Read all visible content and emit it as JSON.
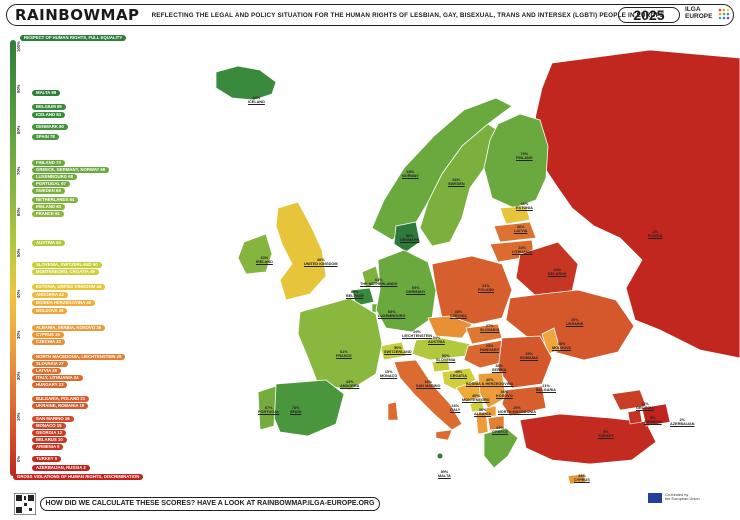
{
  "header": {
    "logo": "RAINBOWMAP",
    "subtitle": "REFLECTING THE LEGAL AND POLICY SITUATION FOR THE HUMAN RIGHTS OF LESBIAN, GAY, BISEXUAL, TRANS AND INTERSEX (LGBTI) PEOPLE IN EUROPE",
    "year": "2025",
    "org_line1": "ILGA",
    "org_line2": "EUROPE"
  },
  "legend": {
    "top_label": "RESPECT OF HUMAN RIGHTS, FULL EQUALITY",
    "bottom_label": "GROSS VIOLATIONS OF HUMAN RIGHTS, DISCRIMINATION",
    "ticks": [
      "100%",
      "90%",
      "80%",
      "70%",
      "60%",
      "50%",
      "40%",
      "30%",
      "20%",
      "10%",
      "0%"
    ],
    "entries": [
      {
        "text": "MALTA 89",
        "color": "#2f7d3c"
      },
      {
        "text": "BELGIUM 85",
        "color": "#3a8a3e"
      },
      {
        "text": "ICELAND 84",
        "color": "#3a8a3e"
      },
      {
        "text": "DENMARK 80",
        "color": "#43913e"
      },
      {
        "text": "SPAIN 78",
        "color": "#4a963d"
      },
      {
        "text": "FINLAND 70",
        "color": "#6aa93e"
      },
      {
        "text": "GREECE, GERMANY, NORWAY 69",
        "color": "#6aa93e"
      },
      {
        "text": "LUXEMBOURG 68",
        "color": "#6fab3e"
      },
      {
        "text": "PORTUGAL 67",
        "color": "#74ad3e"
      },
      {
        "text": "SWEDEN 66",
        "color": "#78af3e"
      },
      {
        "text": "NETHERLANDS 64",
        "color": "#80b33e"
      },
      {
        "text": "IRELAND 63",
        "color": "#85b53e"
      },
      {
        "text": "FRANCE 61",
        "color": "#8ab83e"
      },
      {
        "text": "AUSTRIA 54",
        "color": "#b2c83d"
      },
      {
        "text": "SLOVENIA, SWITZERLAND 50",
        "color": "#c5cd3b"
      },
      {
        "text": "MONTENEGRO, CROATIA 49",
        "color": "#cfd03b"
      },
      {
        "text": "ESTONIA, UNITED KINGDOM 46",
        "color": "#e7c53a"
      },
      {
        "text": "ANDORRA 43",
        "color": "#eeb83a"
      },
      {
        "text": "BOSNIA HERZEGOVINA 40",
        "color": "#eeac3a"
      },
      {
        "text": "MOLDOVA 38",
        "color": "#eea53a"
      },
      {
        "text": "ALBANIA, SERBIA, KOSOVO 36",
        "color": "#ec9d39"
      },
      {
        "text": "CYPRUS 34",
        "color": "#ea9637"
      },
      {
        "text": "CZECHIA 33",
        "color": "#e88f36"
      },
      {
        "text": "NORTH MACEDONIA, LIECHTENSTEIN 29",
        "color": "#e27f33"
      },
      {
        "text": "SLOVAKIA 27",
        "color": "#df7731"
      },
      {
        "text": "LATVIA 26",
        "color": "#dd7331"
      },
      {
        "text": "ITALY, LITHUANIA 24",
        "color": "#db6b2f"
      },
      {
        "text": "HUNGARY 23",
        "color": "#d9672f"
      },
      {
        "text": "BULGARIA, POLAND 21",
        "color": "#d65f2d"
      },
      {
        "text": "UKRAINE, ROMANIA 19",
        "color": "#d4582c"
      },
      {
        "text": "SAN MARINO 16",
        "color": "#cf4b29"
      },
      {
        "text": "MONACO 15",
        "color": "#cd4728"
      },
      {
        "text": "GEORGIA 12",
        "color": "#c93c25"
      },
      {
        "text": "BELARUS 10",
        "color": "#c73623"
      },
      {
        "text": "ARMENIA 9",
        "color": "#c63322"
      },
      {
        "text": "TURKEY 5",
        "color": "#c32a20"
      },
      {
        "text": "AZERBAIJAN, RUSSIA 2",
        "color": "#c1241e"
      }
    ]
  },
  "map_labels": [
    {
      "pct": "84%",
      "name": "ICELAND"
    },
    {
      "pct": "69%",
      "name": "NORWAY"
    },
    {
      "pct": "66%",
      "name": "SWEDEN"
    },
    {
      "pct": "70%",
      "name": "FINLAND"
    },
    {
      "pct": "46%",
      "name": "ESTONIA"
    },
    {
      "pct": "26%",
      "name": "LATVIA"
    },
    {
      "pct": "24%",
      "name": "LITHUANIA"
    },
    {
      "pct": "2%",
      "name": "RUSSIA"
    },
    {
      "pct": "10%",
      "name": "BELARUS"
    },
    {
      "pct": "80%",
      "name": "DENMARK"
    },
    {
      "pct": "63%",
      "name": "IRELAND"
    },
    {
      "pct": "46%",
      "name": "UNITED KINGDOM"
    },
    {
      "pct": "64%",
      "name": "THE NETHERLANDS"
    },
    {
      "pct": "85%",
      "name": "BELGIUM"
    },
    {
      "pct": "68%",
      "name": "LUXEMBOURG"
    },
    {
      "pct": "69%",
      "name": "GERMANY"
    },
    {
      "pct": "21%",
      "name": "POLAND"
    },
    {
      "pct": "33%",
      "name": "CZECHIA"
    },
    {
      "pct": "27%",
      "name": "SLOVAKIA"
    },
    {
      "pct": "19%",
      "name": "UKRAINE"
    },
    {
      "pct": "38%",
      "name": "MOLDOVA"
    },
    {
      "pct": "61%",
      "name": "FRANCE"
    },
    {
      "pct": "50%",
      "name": "SWITZERLAND"
    },
    {
      "pct": "29%",
      "name": "LIECHTENSTEIN"
    },
    {
      "pct": "54%",
      "name": "AUSTRIA"
    },
    {
      "pct": "23%",
      "name": "HUNGARY"
    },
    {
      "pct": "50%",
      "name": "SLOVENIA"
    },
    {
      "pct": "49%",
      "name": "CROATIA"
    },
    {
      "pct": "40%",
      "name": "BOSNIA & HERZEGOVINA"
    },
    {
      "pct": "36%",
      "name": "SERBIA"
    },
    {
      "pct": "19%",
      "name": "ROMANIA"
    },
    {
      "pct": "15%",
      "name": "MONACO"
    },
    {
      "pct": "16%",
      "name": "SAN MARINO"
    },
    {
      "pct": "24%",
      "name": "ITALY"
    },
    {
      "pct": "49%",
      "name": "MONTENEGRO"
    },
    {
      "pct": "36%",
      "name": "KOSOVO"
    },
    {
      "pct": "36%",
      "name": "ALBANIA"
    },
    {
      "pct": "29%",
      "name": "NORTH MACEDONIA"
    },
    {
      "pct": "21%",
      "name": "BULGARIA"
    },
    {
      "pct": "43%",
      "name": "ANDORRA"
    },
    {
      "pct": "67%",
      "name": "PORTUGAL"
    },
    {
      "pct": "78%",
      "name": "SPAIN"
    },
    {
      "pct": "69%",
      "name": "GREECE"
    },
    {
      "pct": "5%",
      "name": "TURKEY"
    },
    {
      "pct": "12%",
      "name": "GEORGIA"
    },
    {
      "pct": "9%",
      "name": "ARMENIA"
    },
    {
      "pct": "2%",
      "name": "AZERBAIJAN"
    },
    {
      "pct": "89%",
      "name": "MALTA"
    },
    {
      "pct": "34%",
      "name": "CYPRUS"
    }
  ],
  "footer": {
    "question": "HOW DID WE CALCULATE THESE SCORES? HAVE A LOOK AT",
    "url": "RAINBOWMAP.ILGA-EUROPE.ORG",
    "eu_line1": "Co-funded by",
    "eu_line2": "the European Union"
  }
}
